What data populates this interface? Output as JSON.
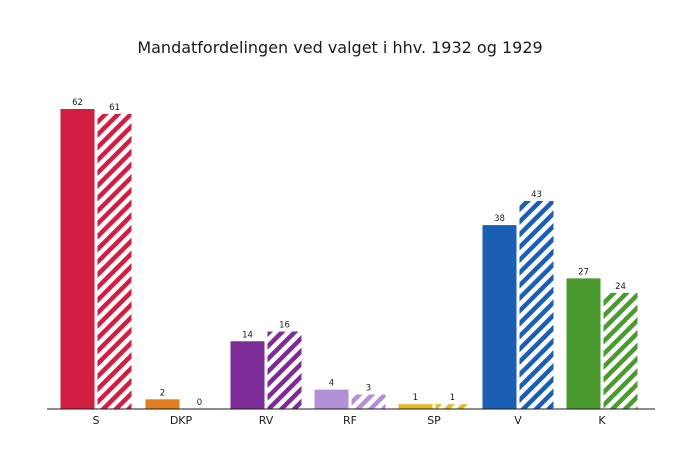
{
  "chart_data": {
    "type": "bar",
    "title": "Mandatfordelingen ved valget i hhv. 1932 og 1929",
    "categories": [
      "S",
      "DKP",
      "RV",
      "RF",
      "SP",
      "V",
      "K"
    ],
    "colors": [
      "#d21e41",
      "#e07e1f",
      "#7b2c96",
      "#b38fd8",
      "#e8b820",
      "#1a5fb4",
      "#4a9a2f"
    ],
    "series": [
      {
        "values": [
          62,
          2,
          14,
          4,
          1,
          38,
          27
        ],
        "fill": "solid"
      },
      {
        "values": [
          61,
          0,
          16,
          3,
          1,
          43,
          24
        ],
        "fill": "hatched"
      }
    ],
    "ylim": [
      0,
      62
    ],
    "grid": false
  }
}
